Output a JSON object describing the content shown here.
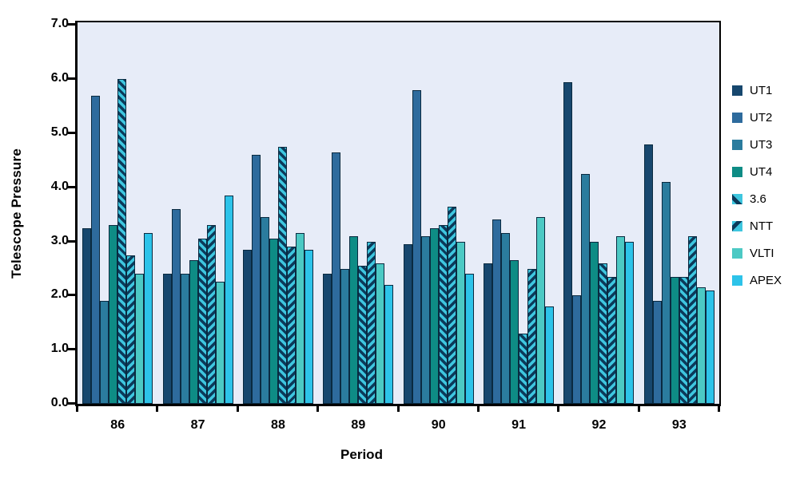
{
  "chart_data": {
    "type": "bar",
    "title": "",
    "xlabel": "Period",
    "ylabel": "Telescope Pressure",
    "categories": [
      "86",
      "87",
      "88",
      "89",
      "90",
      "91",
      "92",
      "93"
    ],
    "series": [
      {
        "name": "UT1",
        "color": "#17476E",
        "pattern": "solid",
        "values": [
          3.25,
          2.4,
          2.85,
          2.4,
          2.95,
          2.6,
          5.95,
          4.8
        ]
      },
      {
        "name": "UT2",
        "color": "#2E6B9D",
        "pattern": "solid",
        "values": [
          5.7,
          3.6,
          4.6,
          4.65,
          5.8,
          3.4,
          2.0,
          1.9
        ]
      },
      {
        "name": "UT3",
        "color": "#2B7C9E",
        "pattern": "solid",
        "values": [
          1.9,
          2.4,
          3.45,
          2.5,
          3.1,
          3.15,
          4.25,
          4.1
        ]
      },
      {
        "name": "UT4",
        "color": "#0E8C85",
        "pattern": "solid",
        "values": [
          3.3,
          2.65,
          3.05,
          3.1,
          3.25,
          2.65,
          3.0,
          2.35
        ]
      },
      {
        "name": "3.6",
        "color": "#3EC6DF",
        "pattern": "diagonal-up",
        "stripe_color": "#0C3A5A",
        "values": [
          6.0,
          3.05,
          4.75,
          2.55,
          3.3,
          1.3,
          2.6,
          2.35
        ]
      },
      {
        "name": "NTT",
        "color": "#3EC6DF",
        "pattern": "diagonal-down",
        "stripe_color": "#0C3A5A",
        "values": [
          2.75,
          3.3,
          2.9,
          3.0,
          3.65,
          2.5,
          2.35,
          3.1
        ]
      },
      {
        "name": "VLTI",
        "color": "#4CC9C4",
        "pattern": "solid",
        "values": [
          2.4,
          2.25,
          3.15,
          2.6,
          3.0,
          3.45,
          3.1,
          2.15
        ]
      },
      {
        "name": "APEX",
        "color": "#2DC3E9",
        "pattern": "solid",
        "values": [
          3.15,
          3.85,
          2.85,
          2.2,
          2.4,
          1.8,
          3.0,
          2.1
        ]
      }
    ],
    "ylim": [
      0,
      7
    ],
    "ytick_step": 1.0,
    "ytick_labels": [
      "0.0",
      "1.0",
      "2.0",
      "3.0",
      "4.0",
      "5.0",
      "6.0",
      "7.0"
    ],
    "grid": false,
    "legend_position": "right",
    "plot_background": "#E7ECF8",
    "bar_outline": "#0A2A40",
    "axis_color": "#000000"
  }
}
